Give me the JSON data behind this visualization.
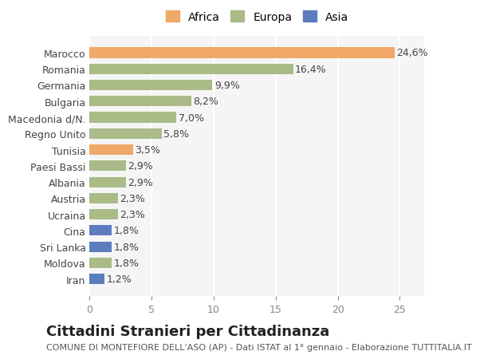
{
  "categories": [
    "Iran",
    "Moldova",
    "Sri Lanka",
    "Cina",
    "Ucraina",
    "Austria",
    "Albania",
    "Paesi Bassi",
    "Tunisia",
    "Regno Unito",
    "Macedonia d/N.",
    "Bulgaria",
    "Germania",
    "Romania",
    "Marocco"
  ],
  "values": [
    1.2,
    1.8,
    1.8,
    1.8,
    2.3,
    2.3,
    2.9,
    2.9,
    3.5,
    5.8,
    7.0,
    8.2,
    9.9,
    16.4,
    24.6
  ],
  "colors": [
    "#5b7dbe",
    "#aabb88",
    "#5b7dbe",
    "#5b7dbe",
    "#aabb88",
    "#aabb88",
    "#aabb88",
    "#aabb88",
    "#f0a868",
    "#aabb88",
    "#aabb88",
    "#aabb88",
    "#aabb88",
    "#aabb88",
    "#f0a868"
  ],
  "africa_color": "#f0a868",
  "europa_color": "#aabb88",
  "asia_color": "#5b7dbe",
  "xlim": [
    0,
    27
  ],
  "xticks": [
    0,
    5,
    10,
    15,
    20,
    25
  ],
  "bg_color": "#ffffff",
  "plot_bg_color": "#f5f5f5",
  "grid_color": "#ffffff",
  "title": "Cittadini Stranieri per Cittadinanza",
  "subtitle": "COMUNE DI MONTEFIORE DELL'ASO (AP) - Dati ISTAT al 1° gennaio - Elaborazione TUTTITALIA.IT",
  "title_fontsize": 13,
  "subtitle_fontsize": 8,
  "label_fontsize": 9,
  "tick_fontsize": 9,
  "legend_fontsize": 10
}
